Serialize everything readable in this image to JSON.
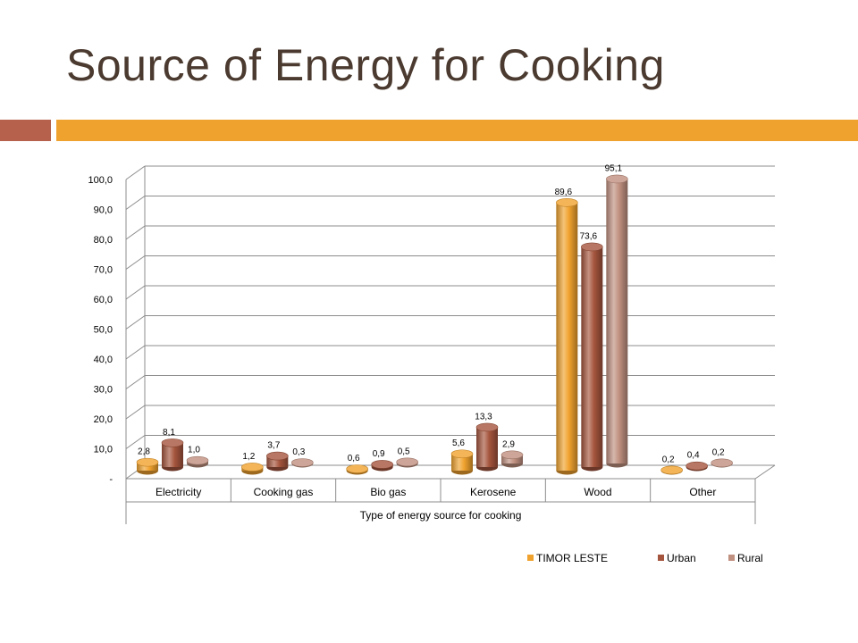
{
  "slide": {
    "title": "Source of Energy for Cooking"
  },
  "colors": {
    "title": "#4b3a2f",
    "band_left": "#b5614b",
    "band_right": "#f0a22e"
  },
  "chart_data": {
    "type": "bar",
    "style": "3d-cylinder",
    "title": "",
    "xlabel": "Type of energy source for cooking",
    "ylabel": "",
    "ylim": [
      0,
      100
    ],
    "ytick_step": 10,
    "ytick_labels": [
      "-",
      "10,0",
      "20,0",
      "30,0",
      "40,0",
      "50,0",
      "60,0",
      "70,0",
      "80,0",
      "90,0",
      "100,0"
    ],
    "grid": true,
    "legend_position": "bottom-right",
    "categories": [
      "Electricity",
      "Cooking gas",
      "Bio gas",
      "Kerosene",
      "Wood",
      "Other"
    ],
    "series": [
      {
        "name": "TIMOR LESTE",
        "color": "#f0a22e",
        "values": [
          2.8,
          1.2,
          0.6,
          5.6,
          89.6,
          0.2
        ],
        "labels": [
          "2,8",
          "1,2",
          "0,6",
          "5,6",
          "89,6",
          "0,2"
        ]
      },
      {
        "name": "Urban",
        "color": "#a5553d",
        "values": [
          8.1,
          3.7,
          0.9,
          13.3,
          73.6,
          0.4
        ],
        "labels": [
          "8,1",
          "3,7",
          "0,9",
          "13,3",
          "73,6",
          "0,4"
        ]
      },
      {
        "name": "Rural",
        "color": "#c09080",
        "values": [
          1.0,
          0.3,
          0.5,
          2.9,
          95.1,
          0.2
        ],
        "labels": [
          "1,0",
          "0,3",
          "0,5",
          "2,9",
          "95,1",
          "0,2"
        ]
      }
    ]
  }
}
